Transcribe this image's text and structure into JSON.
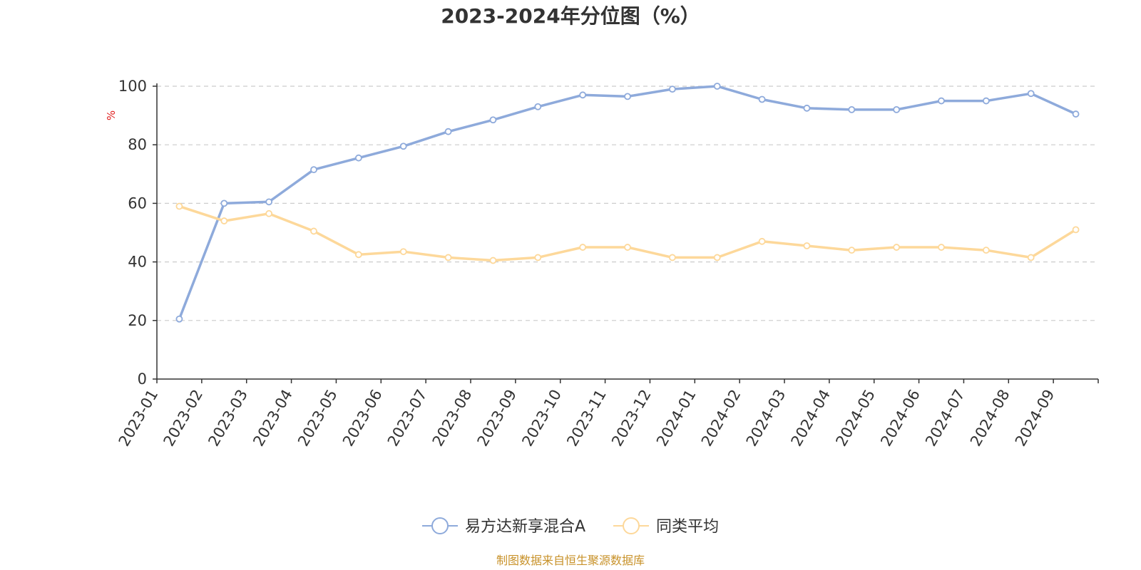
{
  "chart_data": {
    "type": "line",
    "title": "2023-2024年分位图（%）",
    "ylabel": "%",
    "xlabel": "",
    "ylim": [
      0,
      100
    ],
    "yticks": [
      0,
      20,
      40,
      60,
      80,
      100
    ],
    "grid": true,
    "legend_position": "bottom",
    "categories": [
      "2023-01",
      "2023-02",
      "2023-03",
      "2023-04",
      "2023-05",
      "2023-06",
      "2023-07",
      "2023-08",
      "2023-09",
      "2023-10",
      "2023-11",
      "2023-12",
      "2024-01",
      "2024-02",
      "2024-03",
      "2024-04",
      "2024-05",
      "2024-06",
      "2024-07",
      "2024-08",
      "2024-09"
    ],
    "series": [
      {
        "name": "易方达新享混合A",
        "color": "#8eaadb",
        "values": [
          20.5,
          60.0,
          60.5,
          71.5,
          75.5,
          79.5,
          84.5,
          88.5,
          93.0,
          97.0,
          96.5,
          99.0,
          100.0,
          95.5,
          92.5,
          92.0,
          92.0,
          95.0,
          95.0,
          97.5,
          90.5
        ]
      },
      {
        "name": "同类平均",
        "color": "#fdd89a",
        "values": [
          59.0,
          54.0,
          56.5,
          50.5,
          42.5,
          43.5,
          41.5,
          40.5,
          41.5,
          45.0,
          45.0,
          41.5,
          41.5,
          47.0,
          45.5,
          44.0,
          45.0,
          45.0,
          44.0,
          41.5,
          51.0
        ]
      }
    ]
  },
  "source_text": "制图数据来自恒生聚源数据库"
}
